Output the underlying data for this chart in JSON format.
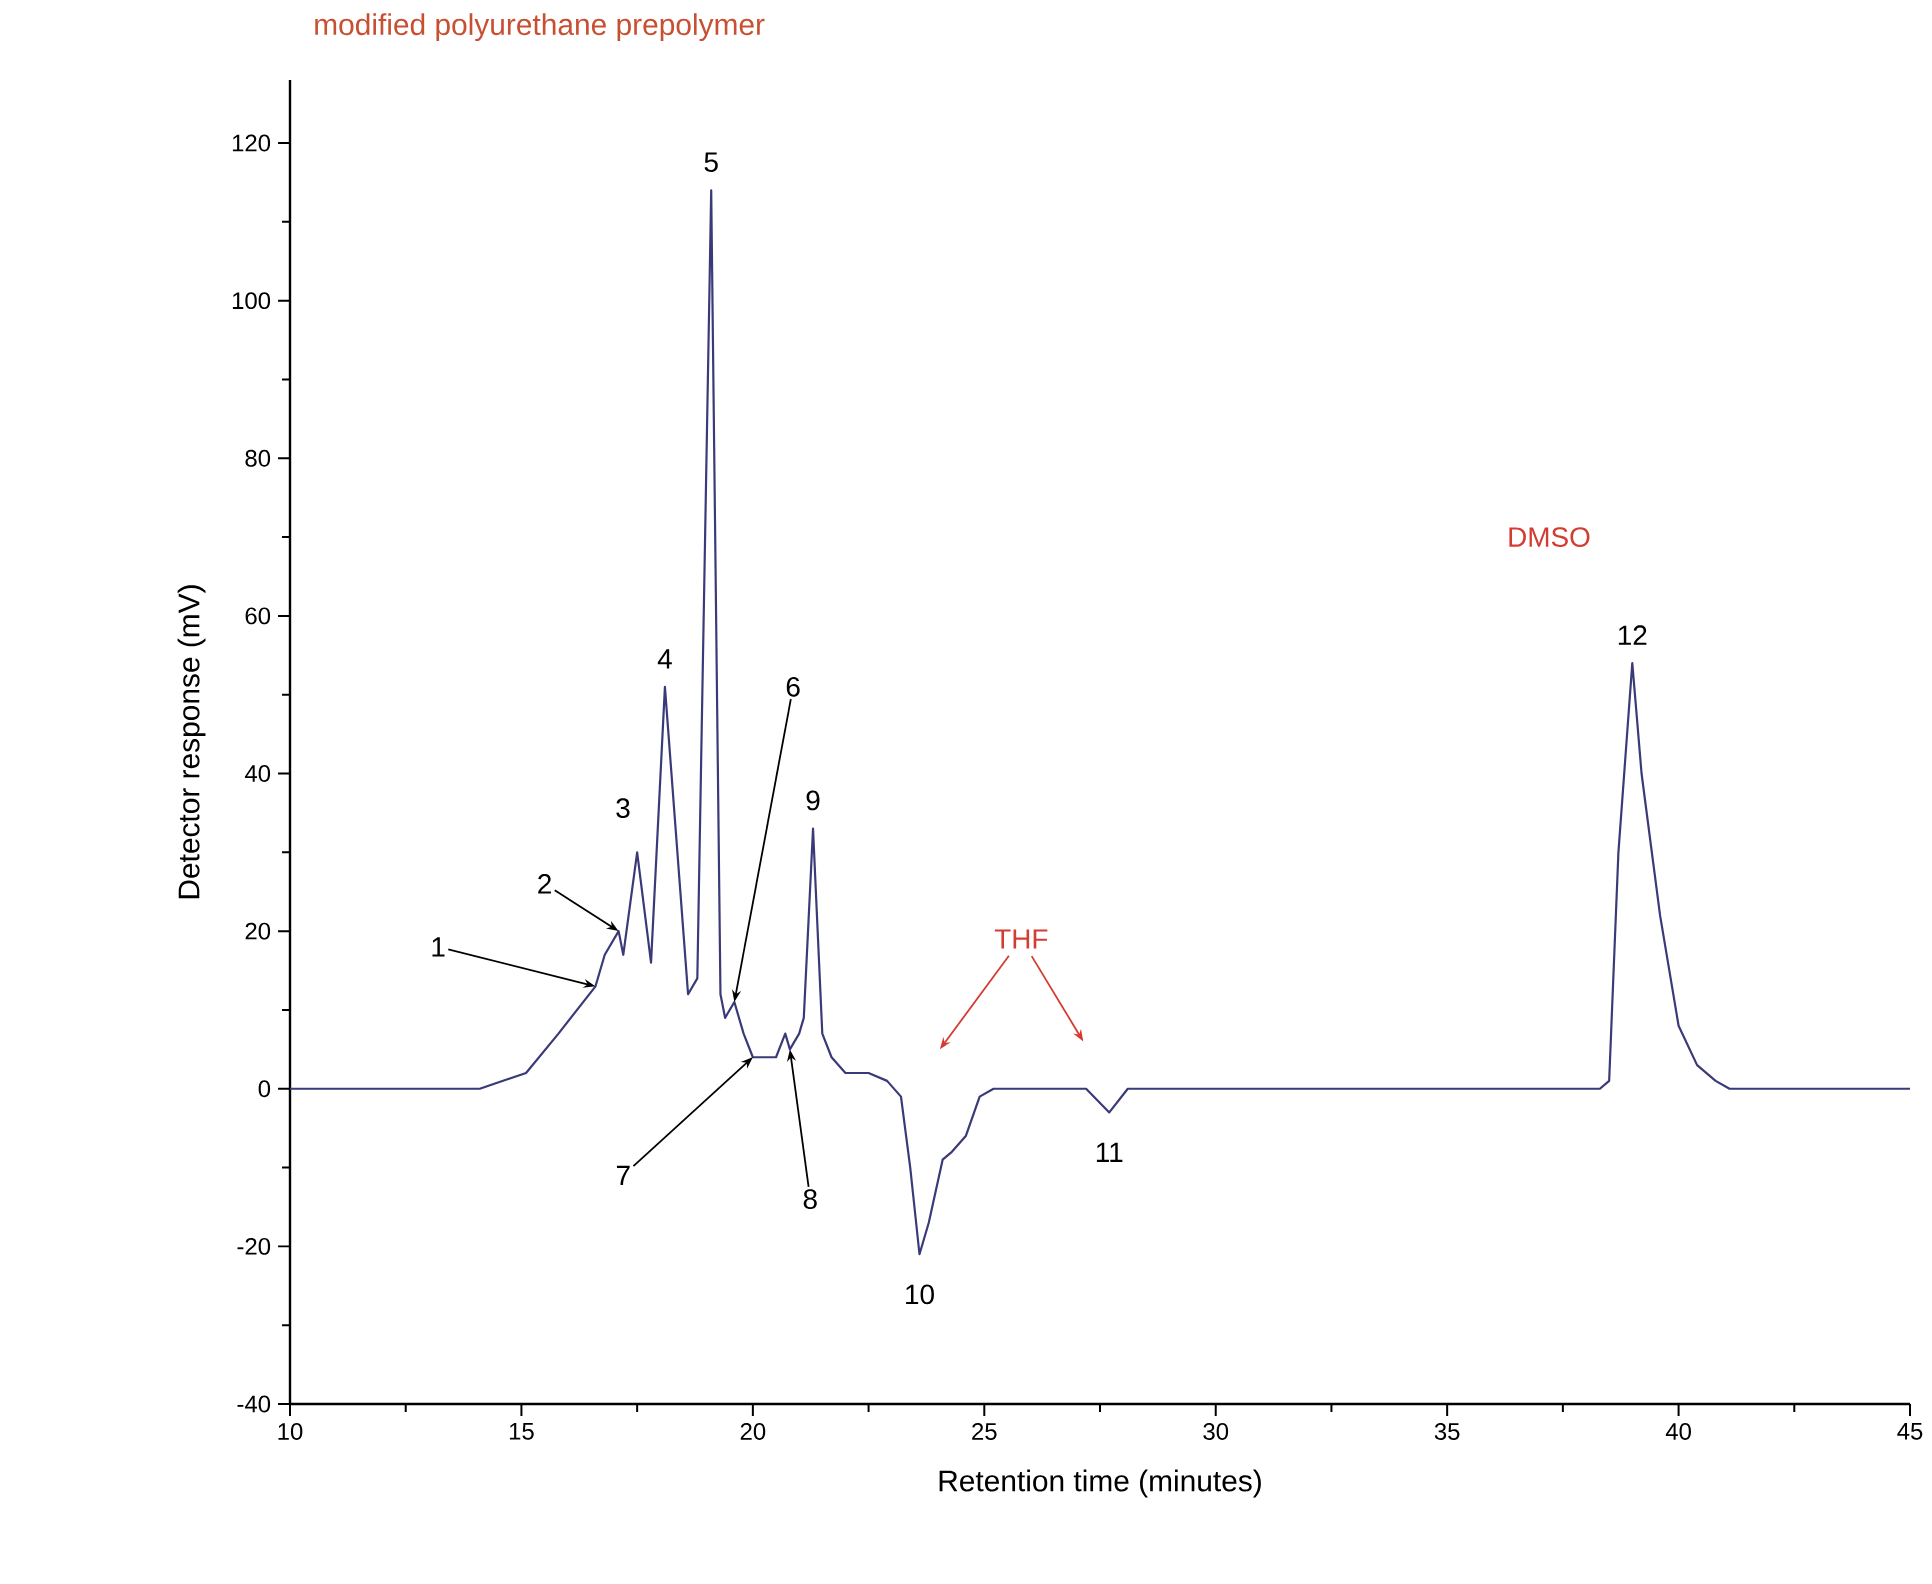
{
  "chart_data": {
    "type": "line",
    "title": "modified polyurethane prepolymer",
    "xlabel": "Retention time (minutes)",
    "ylabel": "Detector response (mV)",
    "xlim": [
      10,
      45
    ],
    "ylim": [
      -40,
      128
    ],
    "xticks": [
      10,
      15,
      20,
      25,
      30,
      35,
      40,
      45
    ],
    "yticks": [
      -40,
      -20,
      0,
      20,
      40,
      60,
      80,
      100,
      120
    ],
    "series": [
      {
        "color": "#3a3a78",
        "x": [
          10,
          14.1,
          15.1,
          15.8,
          16.6,
          16.8,
          17.1,
          17.2,
          17.5,
          17.8,
          18.1,
          18.6,
          18.8,
          19.1,
          19.3,
          19.4,
          19.6,
          19.8,
          20.0,
          20.3,
          20.5,
          20.7,
          20.8,
          21.0,
          21.1,
          21.3,
          21.5,
          21.7,
          22.0,
          22.5,
          22.9,
          23.2,
          23.4,
          23.6,
          23.8,
          24.1,
          24.3,
          24.6,
          24.9,
          25.2,
          27.2,
          27.7,
          28.1,
          28.4,
          38.3,
          38.5,
          38.7,
          39.0,
          39.2,
          39.6,
          40.0,
          40.4,
          40.8,
          41.1,
          45
        ],
        "values": [
          0,
          0,
          2,
          7,
          13,
          17,
          20,
          17,
          30,
          16,
          51,
          12,
          14,
          114,
          12,
          9,
          11,
          7,
          4,
          4,
          4,
          7,
          5,
          7,
          9,
          33,
          7,
          4,
          2,
          2,
          1,
          -1,
          -10,
          -21,
          -17,
          -9,
          -8,
          -6,
          -1,
          0,
          0,
          -3,
          0,
          0,
          0,
          1,
          30,
          54,
          40,
          22,
          8,
          3,
          1,
          0,
          0
        ]
      }
    ],
    "annotations": [
      {
        "text": "1",
        "x": 16.6,
        "y": 13
      },
      {
        "text": "2",
        "x": 17.1,
        "y": 20
      },
      {
        "text": "3",
        "x": 17.5,
        "y": 30
      },
      {
        "text": "4",
        "x": 18.1,
        "y": 51
      },
      {
        "text": "5",
        "x": 19.1,
        "y": 114
      },
      {
        "text": "6",
        "x": 19.6,
        "y": 11
      },
      {
        "text": "7",
        "x": 20.0,
        "y": 4
      },
      {
        "text": "8",
        "x": 20.8,
        "y": 5
      },
      {
        "text": "9",
        "x": 21.3,
        "y": 33
      },
      {
        "text": "10",
        "x": 23.6,
        "y": -21
      },
      {
        "text": "11",
        "x": 27.7,
        "y": -3
      },
      {
        "text": "12",
        "x": 39.0,
        "y": 54
      },
      "THF",
      "DMSO"
    ]
  }
}
